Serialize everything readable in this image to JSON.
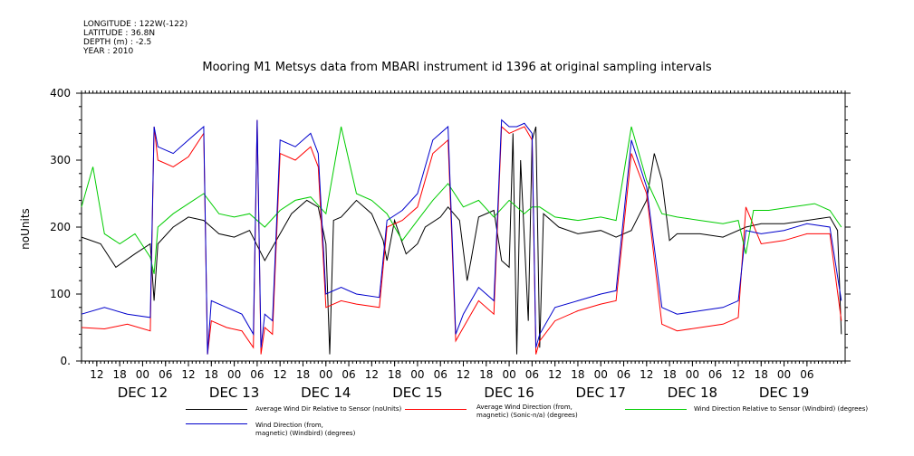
{
  "meta": {
    "longitude": "LONGITUDE : 122W(-122)",
    "latitude": "LATITUDE : 36.8N",
    "depth": "DEPTH (m) : -2.5",
    "year": "YEAR : 2010"
  },
  "chart_data": {
    "type": "line",
    "title": "Mooring M1 Metsys data from MBARI instrument id 1396 at original sampling intervals",
    "ylabel": "noUnits",
    "xlabel": "",
    "ylim": [
      0,
      400
    ],
    "y_ticks": [
      "0.",
      "100",
      "200",
      "300",
      "400"
    ],
    "x_hours": [
      [
        0,
        "06"
      ],
      [
        0,
        "12"
      ],
      [
        0,
        "18"
      ],
      [
        0,
        "00"
      ]
    ],
    "hour_ticks": [
      "12",
      "18",
      "00",
      "06",
      "12",
      "18",
      "00",
      "06",
      "12",
      "18",
      "00",
      "06",
      "12",
      "18",
      "00",
      "06",
      "12",
      "18",
      "00",
      "06",
      "12",
      "18",
      "00",
      "06",
      "12",
      "18",
      "00",
      "06",
      "12",
      "18",
      "00",
      "06"
    ],
    "day_labels": [
      "DEC 12",
      "DEC 13",
      "DEC 14",
      "DEC 15",
      "DEC 16",
      "DEC 17",
      "DEC 18",
      "DEC 19"
    ],
    "x_start": "2010-12-12 08:00",
    "x_end": "2010-12-19 09:00",
    "series": [
      {
        "name": "Average Wind Dir Relative to Sensor (noUnits)",
        "color": "#000000",
        "points": [
          [
            0,
            185
          ],
          [
            5,
            175
          ],
          [
            9,
            140
          ],
          [
            14,
            160
          ],
          [
            18,
            175
          ],
          [
            19,
            90
          ],
          [
            20,
            175
          ],
          [
            24,
            200
          ],
          [
            28,
            215
          ],
          [
            32,
            210
          ],
          [
            36,
            190
          ],
          [
            40,
            185
          ],
          [
            44,
            195
          ],
          [
            48,
            150
          ],
          [
            51,
            180
          ],
          [
            55,
            220
          ],
          [
            59,
            240
          ],
          [
            62,
            230
          ],
          [
            64,
            175
          ],
          [
            65,
            10
          ],
          [
            66,
            210
          ],
          [
            68,
            215
          ],
          [
            72,
            240
          ],
          [
            76,
            220
          ],
          [
            79,
            180
          ],
          [
            80,
            150
          ],
          [
            82,
            210
          ],
          [
            85,
            160
          ],
          [
            88,
            175
          ],
          [
            90,
            200
          ],
          [
            94,
            215
          ],
          [
            96,
            230
          ],
          [
            99,
            210
          ],
          [
            101,
            120
          ],
          [
            102,
            150
          ],
          [
            104,
            215
          ],
          [
            108,
            225
          ],
          [
            110,
            150
          ],
          [
            112,
            140
          ],
          [
            113,
            340
          ],
          [
            114,
            10
          ],
          [
            115,
            300
          ],
          [
            117,
            60
          ],
          [
            118,
            330
          ],
          [
            119,
            350
          ],
          [
            120,
            20
          ],
          [
            121,
            220
          ],
          [
            125,
            200
          ],
          [
            130,
            190
          ],
          [
            136,
            195
          ],
          [
            140,
            185
          ],
          [
            144,
            195
          ],
          [
            148,
            240
          ],
          [
            150,
            310
          ],
          [
            152,
            270
          ],
          [
            154,
            180
          ],
          [
            156,
            190
          ],
          [
            162,
            190
          ],
          [
            168,
            185
          ],
          [
            174,
            200
          ],
          [
            178,
            205
          ],
          [
            184,
            205
          ],
          [
            190,
            210
          ],
          [
            196,
            215
          ],
          [
            198,
            195
          ],
          [
            199,
            40
          ]
        ]
      },
      {
        "name": "Average Wind Direction (from, magnetic) (Sonic-n/a) (degrees)",
        "color": "#ff0000",
        "points": [
          [
            0,
            50
          ],
          [
            6,
            48
          ],
          [
            12,
            55
          ],
          [
            18,
            45
          ],
          [
            19,
            350
          ],
          [
            20,
            300
          ],
          [
            24,
            290
          ],
          [
            28,
            305
          ],
          [
            32,
            340
          ],
          [
            33,
            10
          ],
          [
            34,
            60
          ],
          [
            38,
            50
          ],
          [
            42,
            45
          ],
          [
            45,
            20
          ],
          [
            46,
            360
          ],
          [
            47,
            10
          ],
          [
            48,
            50
          ],
          [
            50,
            40
          ],
          [
            52,
            310
          ],
          [
            56,
            300
          ],
          [
            60,
            320
          ],
          [
            62,
            290
          ],
          [
            64,
            80
          ],
          [
            68,
            90
          ],
          [
            72,
            85
          ],
          [
            78,
            80
          ],
          [
            80,
            200
          ],
          [
            84,
            210
          ],
          [
            88,
            230
          ],
          [
            92,
            310
          ],
          [
            96,
            330
          ],
          [
            98,
            30
          ],
          [
            100,
            50
          ],
          [
            104,
            90
          ],
          [
            108,
            70
          ],
          [
            110,
            350
          ],
          [
            112,
            340
          ],
          [
            114,
            345
          ],
          [
            116,
            350
          ],
          [
            118,
            330
          ],
          [
            119,
            10
          ],
          [
            120,
            30
          ],
          [
            124,
            60
          ],
          [
            130,
            75
          ],
          [
            136,
            85
          ],
          [
            140,
            90
          ],
          [
            144,
            310
          ],
          [
            148,
            250
          ],
          [
            152,
            55
          ],
          [
            156,
            45
          ],
          [
            162,
            50
          ],
          [
            168,
            55
          ],
          [
            172,
            65
          ],
          [
            174,
            230
          ],
          [
            178,
            175
          ],
          [
            184,
            180
          ],
          [
            190,
            190
          ],
          [
            196,
            190
          ],
          [
            199,
            60
          ]
        ]
      },
      {
        "name": "Wind Direction Relative to Sensor (Windbird) (degrees)",
        "color": "#00cc00",
        "points": [
          [
            0,
            230
          ],
          [
            3,
            290
          ],
          [
            6,
            190
          ],
          [
            10,
            175
          ],
          [
            14,
            190
          ],
          [
            18,
            155
          ],
          [
            19,
            130
          ],
          [
            20,
            200
          ],
          [
            24,
            220
          ],
          [
            28,
            235
          ],
          [
            32,
            250
          ],
          [
            36,
            220
          ],
          [
            40,
            215
          ],
          [
            44,
            220
          ],
          [
            48,
            200
          ],
          [
            52,
            225
          ],
          [
            56,
            240
          ],
          [
            60,
            245
          ],
          [
            64,
            220
          ],
          [
            68,
            350
          ],
          [
            72,
            250
          ],
          [
            76,
            240
          ],
          [
            80,
            220
          ],
          [
            84,
            180
          ],
          [
            88,
            210
          ],
          [
            92,
            240
          ],
          [
            96,
            265
          ],
          [
            100,
            230
          ],
          [
            104,
            240
          ],
          [
            108,
            215
          ],
          [
            112,
            240
          ],
          [
            116,
            220
          ],
          [
            118,
            230
          ],
          [
            120,
            230
          ],
          [
            124,
            215
          ],
          [
            130,
            210
          ],
          [
            136,
            215
          ],
          [
            140,
            210
          ],
          [
            144,
            350
          ],
          [
            148,
            270
          ],
          [
            152,
            220
          ],
          [
            156,
            215
          ],
          [
            162,
            210
          ],
          [
            168,
            205
          ],
          [
            172,
            210
          ],
          [
            174,
            160
          ],
          [
            176,
            225
          ],
          [
            180,
            225
          ],
          [
            186,
            230
          ],
          [
            192,
            235
          ],
          [
            196,
            225
          ],
          [
            199,
            200
          ]
        ]
      },
      {
        "name": "Wind Direction (from, magnetic) (Windbird) (degrees)",
        "color": "#0000cc",
        "points": [
          [
            0,
            70
          ],
          [
            6,
            80
          ],
          [
            12,
            70
          ],
          [
            18,
            65
          ],
          [
            19,
            350
          ],
          [
            20,
            320
          ],
          [
            24,
            310
          ],
          [
            28,
            330
          ],
          [
            32,
            350
          ],
          [
            33,
            10
          ],
          [
            34,
            90
          ],
          [
            38,
            80
          ],
          [
            42,
            70
          ],
          [
            45,
            40
          ],
          [
            46,
            360
          ],
          [
            47,
            20
          ],
          [
            48,
            70
          ],
          [
            50,
            60
          ],
          [
            52,
            330
          ],
          [
            56,
            320
          ],
          [
            60,
            340
          ],
          [
            62,
            310
          ],
          [
            64,
            100
          ],
          [
            68,
            110
          ],
          [
            72,
            100
          ],
          [
            78,
            95
          ],
          [
            80,
            210
          ],
          [
            84,
            225
          ],
          [
            88,
            250
          ],
          [
            92,
            330
          ],
          [
            96,
            350
          ],
          [
            98,
            40
          ],
          [
            100,
            70
          ],
          [
            104,
            110
          ],
          [
            108,
            90
          ],
          [
            110,
            360
          ],
          [
            112,
            350
          ],
          [
            114,
            350
          ],
          [
            116,
            355
          ],
          [
            118,
            340
          ],
          [
            119,
            20
          ],
          [
            120,
            40
          ],
          [
            124,
            80
          ],
          [
            130,
            90
          ],
          [
            136,
            100
          ],
          [
            140,
            105
          ],
          [
            144,
            330
          ],
          [
            148,
            260
          ],
          [
            152,
            80
          ],
          [
            156,
            70
          ],
          [
            162,
            75
          ],
          [
            168,
            80
          ],
          [
            172,
            90
          ],
          [
            174,
            195
          ],
          [
            178,
            190
          ],
          [
            184,
            195
          ],
          [
            190,
            205
          ],
          [
            196,
            200
          ],
          [
            199,
            90
          ]
        ]
      }
    ],
    "legend_placement": "bottom",
    "grid": false
  },
  "legend": [
    {
      "label": "Average Wind Dir Relative to Sensor (noUnits)",
      "color": "#000000"
    },
    {
      "label": "Average Wind Direction (from,\nmagnetic) (Sonic-n/a) (degrees)",
      "color": "#ff0000"
    },
    {
      "label": "Wind Direction Relative to Sensor (Windbird) (degrees)",
      "color": "#00cc00"
    },
    {
      "label": "Wind Direction (from,\nmagnetic) (Windbird) (degrees)",
      "color": "#0000cc"
    }
  ]
}
